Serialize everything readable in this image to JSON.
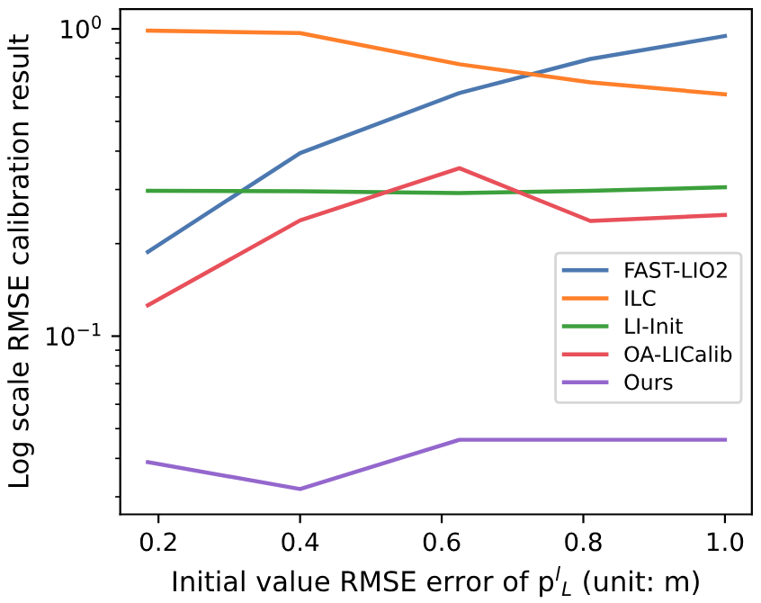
{
  "chart_data": {
    "type": "line",
    "xlabel": "Initial value RMSE error of p$^{l}$$_{L}$ (unit: m)",
    "ylabel": "Log scale RMSE calibration result",
    "x": [
      0.185,
      0.4,
      0.625,
      0.81,
      1.0
    ],
    "series": [
      {
        "name": "FAST-LIO2",
        "color": "#4c78b0",
        "values": [
          0.188,
          0.394,
          0.618,
          0.798,
          0.948
        ]
      },
      {
        "name": "ILC",
        "color": "#ff7f2a",
        "values": [
          0.987,
          0.969,
          0.767,
          0.67,
          0.612
        ]
      },
      {
        "name": "LI-Init",
        "color": "#3ca03c",
        "values": [
          0.297,
          0.296,
          0.292,
          0.297,
          0.305
        ]
      },
      {
        "name": "OA-LICalib",
        "color": "#e8505a",
        "values": [
          0.126,
          0.238,
          0.352,
          0.237,
          0.248
        ]
      },
      {
        "name": "Ours",
        "color": "#9467cd",
        "values": [
          0.0389,
          0.0318,
          0.046,
          0.046,
          0.046
        ]
      }
    ],
    "log": "y",
    "xlim": [
      0.146,
      1.038
    ],
    "ylim": [
      0.0263,
      1.16
    ],
    "xticks": [
      {
        "value": 0.2,
        "label": "0.2"
      },
      {
        "value": 0.4,
        "label": "0.4"
      },
      {
        "value": 0.6,
        "label": "0.6"
      },
      {
        "value": 0.8,
        "label": "0.8"
      },
      {
        "value": 1.0,
        "label": "1.0"
      }
    ],
    "yticks": [
      {
        "value": 0.1,
        "label": "10$^{−1}$"
      },
      {
        "value": 1,
        "label": "10$^{0}$"
      }
    ],
    "legend": "lower right",
    "grid": false,
    "marker": "none",
    "line_style": "solid"
  }
}
